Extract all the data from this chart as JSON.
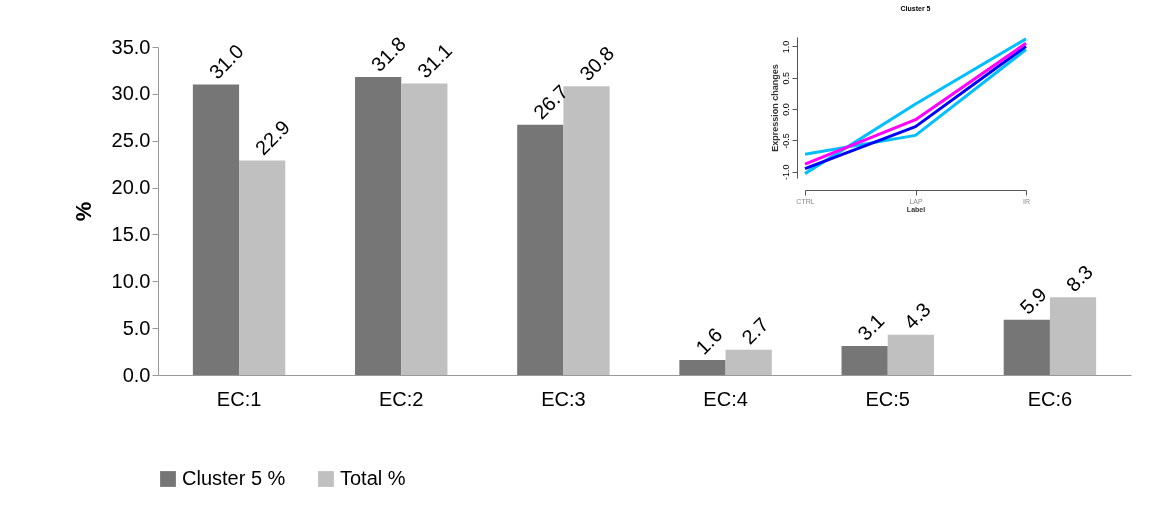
{
  "chart_data": [
    {
      "type": "bar",
      "ylabel": "%",
      "categories": [
        "EC:1",
        "EC:2",
        "EC:3",
        "EC:4",
        "EC:5",
        "EC:6"
      ],
      "series": [
        {
          "name": "Cluster 5 %",
          "color": "#767676",
          "values": [
            31.0,
            31.8,
            26.7,
            1.6,
            3.1,
            5.9
          ],
          "value_labels": [
            "31.0",
            "31.8",
            "26.7",
            "1.6",
            "3.1",
            "5.9"
          ]
        },
        {
          "name": "Total %",
          "color": "#c0c0c0",
          "values": [
            22.9,
            31.1,
            30.8,
            2.7,
            4.3,
            8.3
          ],
          "value_labels": [
            "22.9",
            "31.1",
            "30.8",
            "2.7",
            "4.3",
            "8.3"
          ]
        }
      ],
      "ylim": [
        0,
        35
      ],
      "yticks": [
        {
          "value": 0,
          "label": "0.0"
        },
        {
          "value": 5,
          "label": "5.0"
        },
        {
          "value": 10,
          "label": "10.0"
        },
        {
          "value": 15,
          "label": "15.0"
        },
        {
          "value": 20,
          "label": "20.0"
        },
        {
          "value": 25,
          "label": "25.0"
        },
        {
          "value": 30,
          "label": "30.0"
        },
        {
          "value": 35,
          "label": "35.0"
        }
      ],
      "legend": "bottom",
      "grid": false
    },
    {
      "type": "line",
      "title": "Cluster 5",
      "xlabel": "Label",
      "ylabel": "Expression changes",
      "categories": [
        "CTRL",
        "LAP",
        "IR"
      ],
      "series": [
        {
          "color": "#00bfff",
          "values": [
            -0.72,
            -0.42,
            0.95
          ]
        },
        {
          "color": "#00bfff",
          "values": [
            -1.03,
            0.08,
            1.12
          ]
        },
        {
          "color": "#0000ff",
          "values": [
            -0.95,
            -0.28,
            1.0
          ]
        },
        {
          "color": "#ff00ff",
          "values": [
            -0.88,
            -0.17,
            1.05
          ]
        }
      ],
      "ylim": [
        -1.1,
        1.15
      ],
      "yticks": [
        {
          "value": -1,
          "label": "-1.0"
        },
        {
          "value": -0.5,
          "label": "-0.5"
        },
        {
          "value": 0,
          "label": "0.0"
        },
        {
          "value": 0.5,
          "label": "0.5"
        },
        {
          "value": 1,
          "label": "1.0"
        }
      ],
      "grid": false
    }
  ]
}
